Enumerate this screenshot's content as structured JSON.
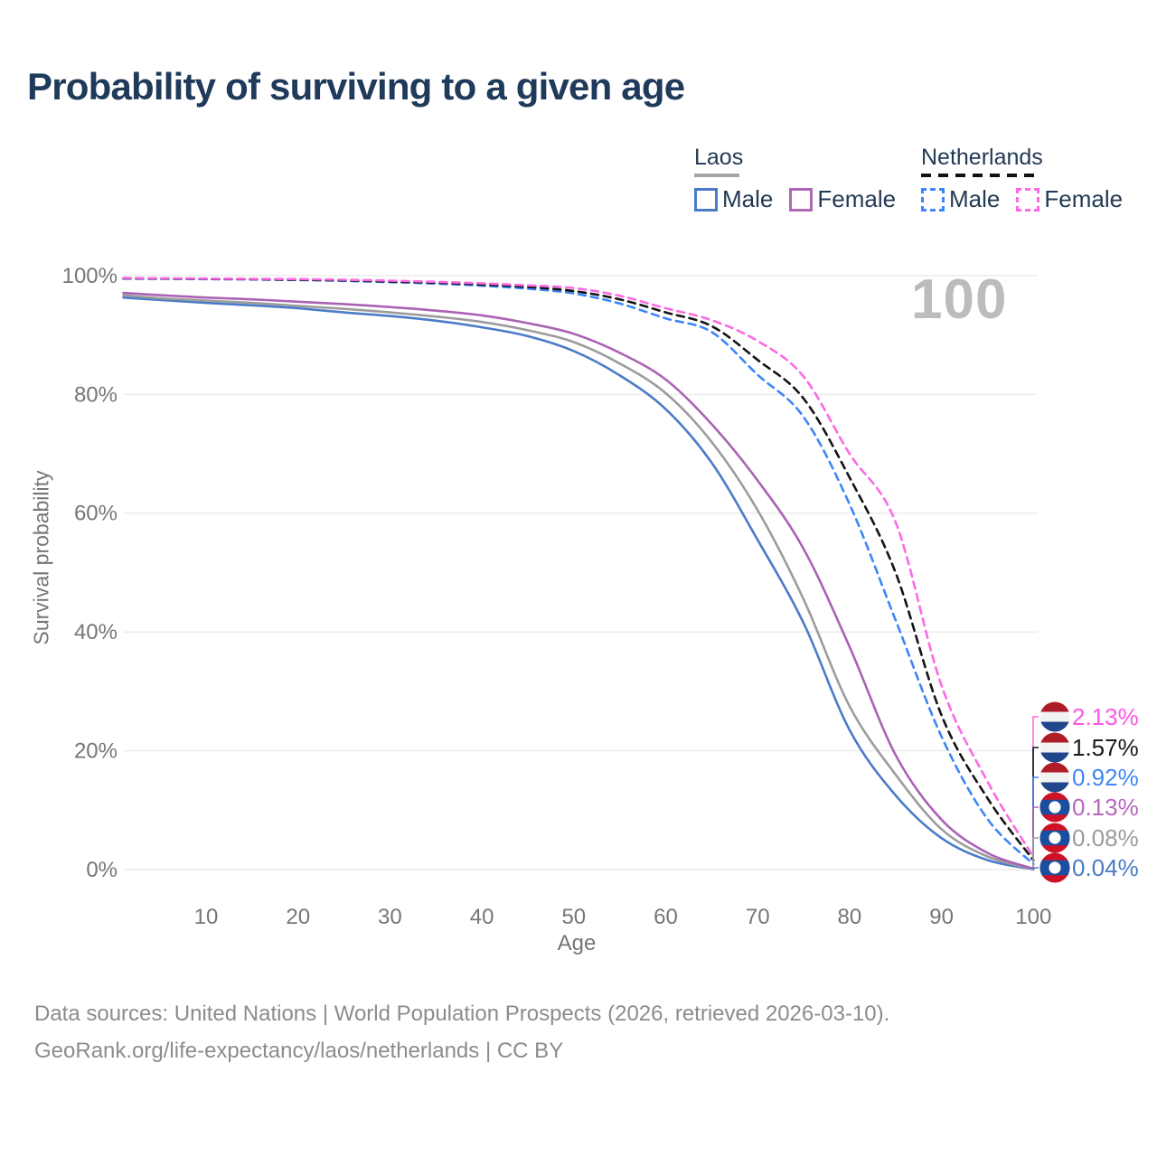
{
  "title": "Probability of surviving to a given age",
  "watermark": "100",
  "legend": {
    "groups": [
      {
        "label": "Laos",
        "style": "solid",
        "underline_color": "#a6a6a6",
        "items": [
          {
            "label": "Male",
            "color": "#4a7bc8"
          },
          {
            "label": "Female",
            "color": "#ad68b3"
          }
        ]
      },
      {
        "label": "Netherlands",
        "style": "dashed",
        "underline_color": "#111111",
        "items": [
          {
            "label": "Male",
            "color": "#3e86f7"
          },
          {
            "label": "Female",
            "color": "#fb6ae3"
          }
        ]
      }
    ]
  },
  "chart_data": {
    "type": "line",
    "title": "Probability of surviving to a given age",
    "xlabel": "Age",
    "ylabel": "Survival probability",
    "xlim": [
      0,
      100
    ],
    "ylim": [
      0,
      100
    ],
    "grid": "horizontal",
    "x_ticks": [
      10,
      20,
      30,
      40,
      50,
      60,
      70,
      80,
      90,
      100
    ],
    "y_ticks": [
      "0%",
      "20%",
      "40%",
      "60%",
      "80%",
      "100%"
    ],
    "ages": [
      1,
      5,
      10,
      15,
      20,
      25,
      30,
      35,
      40,
      45,
      50,
      55,
      60,
      65,
      70,
      75,
      80,
      85,
      90,
      95,
      100
    ],
    "series": [
      {
        "id": "laos-male",
        "name": "Laos Male",
        "country": "Laos",
        "sex": "Male",
        "style": "solid",
        "color": "#4a7bc8",
        "flag": "la",
        "end_label": "0.04%",
        "label_color": "#4a7bc8",
        "values": [
          96.3,
          95.9,
          95.4,
          95.0,
          94.5,
          93.8,
          93.2,
          92.4,
          91.3,
          89.8,
          87.3,
          83.2,
          77.5,
          68.5,
          55.5,
          41.5,
          23.5,
          12.5,
          5.3,
          1.6,
          0.04
        ]
      },
      {
        "id": "laos-both",
        "name": "Laos Both sexes",
        "country": "Laos",
        "sex": "Both",
        "style": "solid",
        "color": "#9c9c9c",
        "flag": "la",
        "end_label": "0.08%",
        "label_color": "#9c9c9c",
        "values": [
          96.7,
          96.2,
          95.8,
          95.4,
          94.9,
          94.4,
          93.8,
          93.1,
          92.2,
          90.8,
          88.8,
          85.2,
          80.2,
          72.0,
          60.5,
          45.5,
          27.5,
          16.0,
          6.8,
          2.2,
          0.08
        ]
      },
      {
        "id": "laos-female",
        "name": "Laos Female",
        "country": "Laos",
        "sex": "Female",
        "style": "solid",
        "color": "#ab62b5",
        "flag": "la",
        "end_label": "0.13%",
        "label_color": "#b767bd",
        "values": [
          97.1,
          96.7,
          96.3,
          96.0,
          95.6,
          95.2,
          94.7,
          94.1,
          93.3,
          92.0,
          90.2,
          87.0,
          82.5,
          75.0,
          65.5,
          54.0,
          37.5,
          19.3,
          8.4,
          2.8,
          0.13
        ]
      },
      {
        "id": "nl-male",
        "name": "Netherlands Male",
        "country": "Netherlands",
        "sex": "Male",
        "style": "dashed",
        "color": "#3e86f7",
        "flag": "nl",
        "end_label": "0.92%",
        "label_color": "#3e86f7",
        "values": [
          99.5,
          99.45,
          99.4,
          99.35,
          99.25,
          99.1,
          98.9,
          98.65,
          98.3,
          97.8,
          97.0,
          95.3,
          92.8,
          90.5,
          83.3,
          76.2,
          61.5,
          42.0,
          22.4,
          8.5,
          0.92
        ]
      },
      {
        "id": "nl-both",
        "name": "Netherlands Both sexes",
        "country": "Netherlands",
        "sex": "Both",
        "style": "dashed",
        "color": "#141414",
        "flag": "nl",
        "end_label": "1.57%",
        "label_color": "#1b1b1b",
        "values": [
          99.55,
          99.5,
          99.45,
          99.4,
          99.3,
          99.2,
          99.0,
          98.8,
          98.5,
          98.1,
          97.4,
          96.0,
          93.8,
          91.5,
          85.8,
          79.3,
          66.0,
          50.0,
          26.0,
          12.0,
          1.57
        ]
      },
      {
        "id": "nl-female",
        "name": "Netherlands Female",
        "country": "Netherlands",
        "sex": "Female",
        "style": "dashed",
        "color": "#fb6ae3",
        "flag": "nl",
        "end_label": "2.13%",
        "label_color": "#fd57e3",
        "values": [
          99.6,
          99.55,
          99.5,
          99.45,
          99.4,
          99.3,
          99.15,
          98.95,
          98.7,
          98.35,
          97.9,
          96.6,
          94.5,
          92.5,
          89.0,
          83.0,
          70.0,
          58.5,
          31.0,
          14.8,
          2.13
        ]
      }
    ]
  },
  "footer": {
    "line1": "Data sources: United Nations | World Population Prospects (2026, retrieved 2026-03-10).",
    "line2": "GeoRank.org/life-expectancy/laos/netherlands | CC BY"
  }
}
